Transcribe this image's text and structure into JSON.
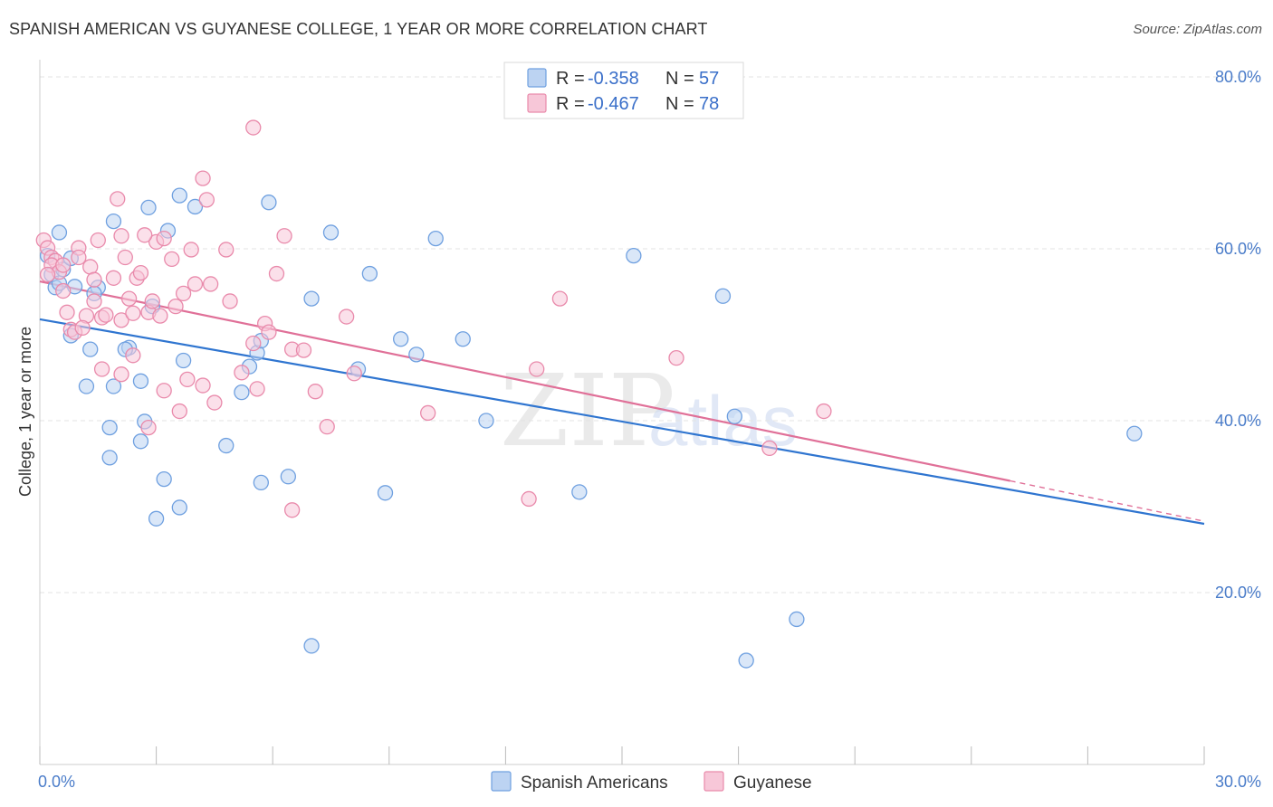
{
  "title": "SPANISH AMERICAN VS GUYANESE COLLEGE, 1 YEAR OR MORE CORRELATION CHART",
  "source": "Source: ZipAtlas.com",
  "colors": {
    "blue": "#6fa0e0",
    "blue_fill": "#bcd3f2",
    "blue_line": "#2f75d0",
    "pink": "#e98aab",
    "pink_fill": "#f7c7d8",
    "pink_line": "#e07098",
    "grid": "#e3e3e3",
    "tick_label": "#4a7cc9"
  },
  "legend": {
    "r_label": "R =",
    "n_label": "N =",
    "series": [
      {
        "r": "-0.358",
        "n": "57"
      },
      {
        "r": "-0.467",
        "n": "78"
      }
    ]
  },
  "chart_data": {
    "type": "scatter",
    "title": "SPANISH AMERICAN VS GUYANESE COLLEGE, 1 YEAR OR MORE CORRELATION CHART",
    "xlabel": "",
    "ylabel": "College, 1 year or more",
    "xlim": [
      0,
      30
    ],
    "ylim": [
      0,
      82
    ],
    "x_tick_labels": [
      "0.0%",
      "30.0%"
    ],
    "y_ticks": [
      20,
      40,
      60,
      80
    ],
    "y_tick_labels": [
      "20.0%",
      "40.0%",
      "60.0%",
      "80.0%"
    ],
    "grid": true,
    "legend_position": "top-center",
    "series": [
      {
        "name": "Spanish Americans",
        "color": "#6fa0e0",
        "trend": {
          "x": [
            0,
            30
          ],
          "y": [
            51.8,
            28.0
          ],
          "dashed_from": null
        },
        "points": [
          [
            0.2,
            59.2
          ],
          [
            0.4,
            55.5
          ],
          [
            0.3,
            57.0
          ],
          [
            0.5,
            56.0
          ],
          [
            0.6,
            57.6
          ],
          [
            0.8,
            58.9
          ],
          [
            0.5,
            61.9
          ],
          [
            0.9,
            55.6
          ],
          [
            1.5,
            55.5
          ],
          [
            1.4,
            54.8
          ],
          [
            0.8,
            49.9
          ],
          [
            1.3,
            48.3
          ],
          [
            1.2,
            44.0
          ],
          [
            1.9,
            63.2
          ],
          [
            2.3,
            48.5
          ],
          [
            2.2,
            48.3
          ],
          [
            1.9,
            44.0
          ],
          [
            2.8,
            64.8
          ],
          [
            2.6,
            44.6
          ],
          [
            2.9,
            53.3
          ],
          [
            3.3,
            62.1
          ],
          [
            3.6,
            66.2
          ],
          [
            4.0,
            64.9
          ],
          [
            3.7,
            47.0
          ],
          [
            2.7,
            39.9
          ],
          [
            1.8,
            39.2
          ],
          [
            1.8,
            35.7
          ],
          [
            2.6,
            37.6
          ],
          [
            3.2,
            33.2
          ],
          [
            3.6,
            29.9
          ],
          [
            3.0,
            28.6
          ],
          [
            4.8,
            37.1
          ],
          [
            5.2,
            43.3
          ],
          [
            5.4,
            46.3
          ],
          [
            5.6,
            47.9
          ],
          [
            5.7,
            49.3
          ],
          [
            5.7,
            32.8
          ],
          [
            5.9,
            65.4
          ],
          [
            6.4,
            33.5
          ],
          [
            7.0,
            54.2
          ],
          [
            7.5,
            61.9
          ],
          [
            8.2,
            46.0
          ],
          [
            8.5,
            57.1
          ],
          [
            8.9,
            31.6
          ],
          [
            9.3,
            49.5
          ],
          [
            9.7,
            47.7
          ],
          [
            10.2,
            61.2
          ],
          [
            10.9,
            49.5
          ],
          [
            11.5,
            40.0
          ],
          [
            13.9,
            31.7
          ],
          [
            15.3,
            59.2
          ],
          [
            17.6,
            54.5
          ],
          [
            17.9,
            40.5
          ],
          [
            19.5,
            16.9
          ],
          [
            28.2,
            38.5
          ],
          [
            7.0,
            13.8
          ],
          [
            18.2,
            12.1
          ]
        ]
      },
      {
        "name": "Guyanese",
        "color": "#e98aab",
        "trend": {
          "x": [
            0,
            25.0
          ],
          "y": [
            56.2,
            33.0
          ],
          "dashed_from": 25.0,
          "dashed_to": [
            30,
            28.3
          ]
        },
        "points": [
          [
            0.1,
            61.0
          ],
          [
            0.2,
            60.1
          ],
          [
            0.3,
            59.0
          ],
          [
            0.4,
            58.6
          ],
          [
            0.3,
            58.1
          ],
          [
            0.5,
            57.3
          ],
          [
            0.2,
            57.0
          ],
          [
            0.6,
            55.1
          ],
          [
            0.7,
            52.6
          ],
          [
            0.8,
            50.6
          ],
          [
            1.0,
            60.1
          ],
          [
            1.2,
            52.2
          ],
          [
            1.3,
            57.9
          ],
          [
            1.4,
            56.4
          ],
          [
            1.5,
            61.0
          ],
          [
            1.4,
            53.9
          ],
          [
            1.6,
            52.0
          ],
          [
            1.9,
            56.6
          ],
          [
            1.7,
            52.3
          ],
          [
            2.1,
            51.7
          ],
          [
            2.1,
            61.5
          ],
          [
            2.2,
            59.0
          ],
          [
            2.3,
            54.2
          ],
          [
            2.4,
            52.5
          ],
          [
            2.5,
            56.6
          ],
          [
            2.6,
            57.2
          ],
          [
            2.8,
            52.6
          ],
          [
            2.9,
            53.9
          ],
          [
            2.0,
            65.8
          ],
          [
            3.0,
            60.8
          ],
          [
            3.1,
            52.2
          ],
          [
            3.4,
            58.8
          ],
          [
            3.5,
            53.3
          ],
          [
            3.7,
            54.8
          ],
          [
            3.9,
            59.9
          ],
          [
            4.0,
            55.9
          ],
          [
            4.2,
            68.2
          ],
          [
            4.3,
            65.7
          ],
          [
            3.8,
            44.8
          ],
          [
            3.6,
            41.1
          ],
          [
            4.5,
            42.1
          ],
          [
            4.9,
            53.9
          ],
          [
            5.2,
            45.6
          ],
          [
            5.5,
            49.0
          ],
          [
            5.8,
            51.3
          ],
          [
            5.9,
            50.3
          ],
          [
            6.1,
            57.1
          ],
          [
            6.3,
            61.5
          ],
          [
            6.5,
            48.3
          ],
          [
            6.8,
            48.2
          ],
          [
            7.1,
            43.4
          ],
          [
            7.4,
            39.3
          ],
          [
            7.9,
            52.1
          ],
          [
            8.1,
            45.5
          ],
          [
            5.5,
            74.1
          ],
          [
            4.8,
            59.9
          ],
          [
            2.4,
            47.6
          ],
          [
            2.8,
            39.2
          ],
          [
            3.2,
            43.5
          ],
          [
            1.6,
            46.0
          ],
          [
            2.1,
            45.4
          ],
          [
            1.0,
            59.0
          ],
          [
            0.6,
            58.1
          ],
          [
            6.5,
            29.6
          ],
          [
            4.2,
            44.1
          ],
          [
            5.6,
            43.7
          ],
          [
            10.0,
            40.9
          ],
          [
            12.8,
            46.0
          ],
          [
            12.6,
            30.9
          ],
          [
            13.4,
            54.2
          ],
          [
            16.4,
            47.3
          ],
          [
            18.8,
            36.8
          ],
          [
            20.2,
            41.1
          ],
          [
            3.2,
            61.2
          ],
          [
            2.7,
            61.6
          ],
          [
            0.9,
            50.3
          ],
          [
            1.1,
            50.8
          ],
          [
            4.4,
            55.9
          ]
        ]
      }
    ]
  },
  "bottom_legend": [
    "Spanish Americans",
    "Guyanese"
  ],
  "watermark": {
    "zip": "ZIP",
    "atlas": "atlas"
  }
}
